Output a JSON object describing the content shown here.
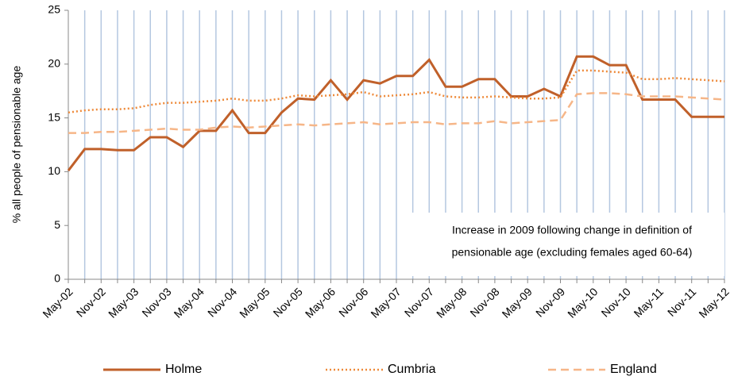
{
  "chart_data": {
    "type": "line",
    "y_label": "% all people of pensionable age",
    "categories": [
      "May-02",
      null,
      "Nov-02",
      null,
      "May-03",
      null,
      "Nov-03",
      null,
      "May-04",
      null,
      "Nov-04",
      null,
      "May-05",
      null,
      "Nov-05",
      null,
      "May-06",
      null,
      "Nov-06",
      null,
      "May-07",
      null,
      "Nov-07",
      null,
      "May-08",
      null,
      "Nov-08",
      null,
      "May-09",
      null,
      "Nov-09",
      null,
      "May-10",
      null,
      "Nov-10",
      null,
      "May-11",
      null,
      "Nov-11",
      null,
      "May-12"
    ],
    "series": [
      {
        "name": "Holme",
        "color": "#c0602a",
        "style": "solid",
        "values": [
          10.1,
          12.1,
          12.1,
          12.0,
          12.0,
          13.2,
          13.2,
          12.3,
          13.8,
          13.8,
          15.7,
          13.6,
          13.6,
          15.5,
          16.8,
          16.7,
          18.5,
          16.7,
          18.5,
          18.2,
          18.9,
          18.9,
          20.4,
          17.9,
          17.9,
          18.6,
          18.6,
          17.0,
          17.0,
          17.7,
          17.0,
          20.7,
          20.7,
          19.9,
          19.9,
          16.7,
          16.7,
          16.7,
          15.1,
          15.1,
          15.1
        ]
      },
      {
        "name": "Cumbria",
        "color": "#ee8a3a",
        "style": "dotted",
        "values": [
          15.5,
          15.7,
          15.8,
          15.8,
          15.9,
          16.2,
          16.4,
          16.4,
          16.5,
          16.6,
          16.8,
          16.6,
          16.6,
          16.8,
          17.1,
          17.0,
          17.1,
          17.2,
          17.4,
          17.0,
          17.1,
          17.2,
          17.4,
          17.0,
          16.9,
          16.9,
          17.0,
          16.9,
          16.8,
          16.8,
          16.9,
          19.4,
          19.4,
          19.3,
          19.2,
          18.6,
          18.6,
          18.7,
          18.6,
          18.5,
          18.4
        ]
      },
      {
        "name": "England",
        "color": "#f6b688",
        "style": "dashed",
        "values": [
          13.6,
          13.6,
          13.7,
          13.7,
          13.8,
          13.9,
          14.0,
          13.9,
          13.9,
          14.1,
          14.2,
          14.1,
          14.2,
          14.3,
          14.4,
          14.3,
          14.4,
          14.5,
          14.6,
          14.4,
          14.5,
          14.6,
          14.6,
          14.4,
          14.5,
          14.5,
          14.7,
          14.5,
          14.6,
          14.7,
          14.8,
          17.2,
          17.3,
          17.3,
          17.2,
          17.0,
          17.0,
          17.0,
          16.9,
          16.8,
          16.7
        ]
      }
    ],
    "annotation": [
      "Increase in 2009 following change in definition of",
      "pensionable age (excluding females aged 60-64)"
    ],
    "ylim": [
      0,
      25
    ],
    "yticks": [
      0,
      5,
      10,
      15,
      20,
      25
    ],
    "grid": "vertical"
  }
}
